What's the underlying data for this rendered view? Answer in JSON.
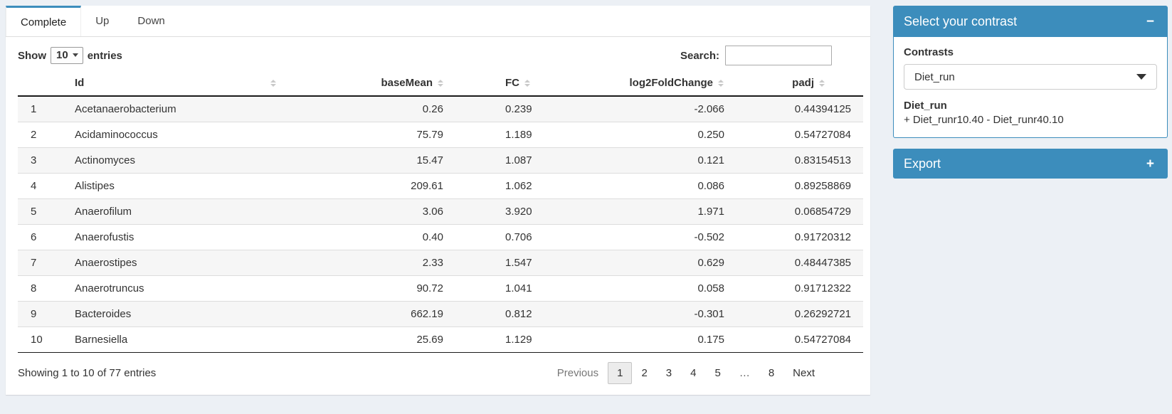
{
  "theme": {
    "accent": "#3c8dbc",
    "page_background": "#ecf0f5",
    "stripe": "#f6f6f6",
    "box_header_text": "#ffffff"
  },
  "tabs": [
    {
      "label": "Complete",
      "active": true
    },
    {
      "label": "Up",
      "active": false
    },
    {
      "label": "Down",
      "active": false
    }
  ],
  "datatable": {
    "show_label": "Show",
    "page_length": "10",
    "entries_label": "entries",
    "search_label": "Search:",
    "search_value": "",
    "info": "Showing 1 to 10 of 77 entries"
  },
  "table": {
    "columns": [
      {
        "label": ""
      },
      {
        "label": "Id"
      },
      {
        "label": "baseMean"
      },
      {
        "label": "FC"
      },
      {
        "label": "log2FoldChange"
      },
      {
        "label": "padj"
      }
    ],
    "rows": [
      {
        "num": "1",
        "id": "Acetanaerobacterium",
        "baseMean": "0.26",
        "fc": "0.239",
        "log2fc": "-2.066",
        "padj": "0.44394125"
      },
      {
        "num": "2",
        "id": "Acidaminococcus",
        "baseMean": "75.79",
        "fc": "1.189",
        "log2fc": "0.250",
        "padj": "0.54727084"
      },
      {
        "num": "3",
        "id": "Actinomyces",
        "baseMean": "15.47",
        "fc": "1.087",
        "log2fc": "0.121",
        "padj": "0.83154513"
      },
      {
        "num": "4",
        "id": "Alistipes",
        "baseMean": "209.61",
        "fc": "1.062",
        "log2fc": "0.086",
        "padj": "0.89258869"
      },
      {
        "num": "5",
        "id": "Anaerofilum",
        "baseMean": "3.06",
        "fc": "3.920",
        "log2fc": "1.971",
        "padj": "0.06854729"
      },
      {
        "num": "6",
        "id": "Anaerofustis",
        "baseMean": "0.40",
        "fc": "0.706",
        "log2fc": "-0.502",
        "padj": "0.91720312"
      },
      {
        "num": "7",
        "id": "Anaerostipes",
        "baseMean": "2.33",
        "fc": "1.547",
        "log2fc": "0.629",
        "padj": "0.48447385"
      },
      {
        "num": "8",
        "id": "Anaerotruncus",
        "baseMean": "90.72",
        "fc": "1.041",
        "log2fc": "0.058",
        "padj": "0.91712322"
      },
      {
        "num": "9",
        "id": "Bacteroides",
        "baseMean": "662.19",
        "fc": "0.812",
        "log2fc": "-0.301",
        "padj": "0.26292721"
      },
      {
        "num": "10",
        "id": "Barnesiella",
        "baseMean": "25.69",
        "fc": "1.129",
        "log2fc": "0.175",
        "padj": "0.54727084"
      }
    ]
  },
  "pagination": {
    "previous": "Previous",
    "pages": [
      "1",
      "2",
      "3",
      "4",
      "5",
      "…",
      "8"
    ],
    "current": "1",
    "next": "Next"
  },
  "contrast_box": {
    "title": "Select your contrast",
    "collapse_icon": "−",
    "contrasts_label": "Contrasts",
    "selected_contrast": "Diet_run",
    "contrast_name": "Diet_run",
    "contrast_formula": "+ Diet_runr10.40 - Diet_runr40.10"
  },
  "export_box": {
    "title": "Export",
    "expand_icon": "+"
  }
}
